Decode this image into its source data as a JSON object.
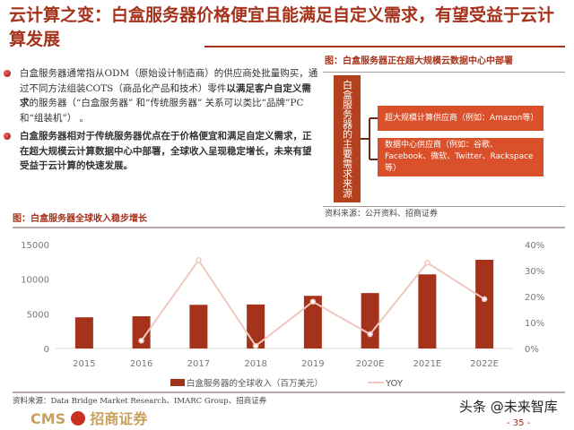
{
  "title": "云计算之变：白盒服务器价格便宜且能满足自定义需求，有望受益于云计算发展",
  "bullets": [
    {
      "pre": "白盒服务器通常指从ODM（原始设计制造商）的供应商处批量购买，通过不同方法组装COTS（商品化产品和技术）零件",
      "bold": "以满足客户自定义需求",
      "post": "的服务器（“白盒服务器” 和“传统服务器” 关系可以类比“品牌”PC和“组装机”）  。"
    },
    {
      "bold": "白盒服务器相对于传统服务器优点在于价格便宜和满足自定义需求，正在超大规模云计算数据中心中部署，全球收入呈现稳定增长，未来有望受益于云计算的快速发展。"
    }
  ],
  "diagram": {
    "title": "图：白盒服务器正在超大规模云数据中心中部署",
    "root": "白盒服务器的主要需求来源",
    "branches": [
      "超大规模计算供应商（例如：Amazon等）",
      "数据中心供应商（例如：谷歌、Facebook、微软、Twitter、Rackspace等）"
    ],
    "source": "资料来源：公开资料、招商证券",
    "colors": {
      "root": "#b5401e",
      "branch": "#d9502a"
    }
  },
  "chart_title": "图：白盒服务器全球收入稳步增长",
  "chart_data": {
    "type": "bar",
    "categories": [
      "2015",
      "2016",
      "2017",
      "2018",
      "2019",
      "2020E",
      "2021E",
      "2022E"
    ],
    "series": [
      {
        "name": "白盒服务器的全球收入（百万美元）",
        "type": "bar",
        "axis": "left",
        "color": "#a5321b",
        "values": [
          4500,
          4650,
          6300,
          6350,
          7600,
          8000,
          10700,
          12800
        ]
      },
      {
        "name": "YOY",
        "type": "line",
        "axis": "right",
        "color": "#f0c8c0",
        "values": [
          null,
          3,
          34,
          1,
          18,
          5.5,
          33,
          19
        ]
      }
    ],
    "yleft": {
      "ticks": [
        "0",
        "5000",
        "10000",
        "15000"
      ],
      "range": [
        0,
        15000
      ]
    },
    "yright": {
      "ticks": [
        "0%",
        "10%",
        "20%",
        "30%",
        "40%"
      ],
      "range": [
        0,
        40
      ]
    },
    "legend": "bottom"
  },
  "footer": {
    "source": "资料来源：Data Bridge Market Research、IMARC Group、招商证券",
    "logo": "CMS 招商证券",
    "logo_cms": "CMS",
    "logo_cn": "招商证券",
    "watermark": "头条 @未来智库",
    "page": "- 35 -"
  }
}
